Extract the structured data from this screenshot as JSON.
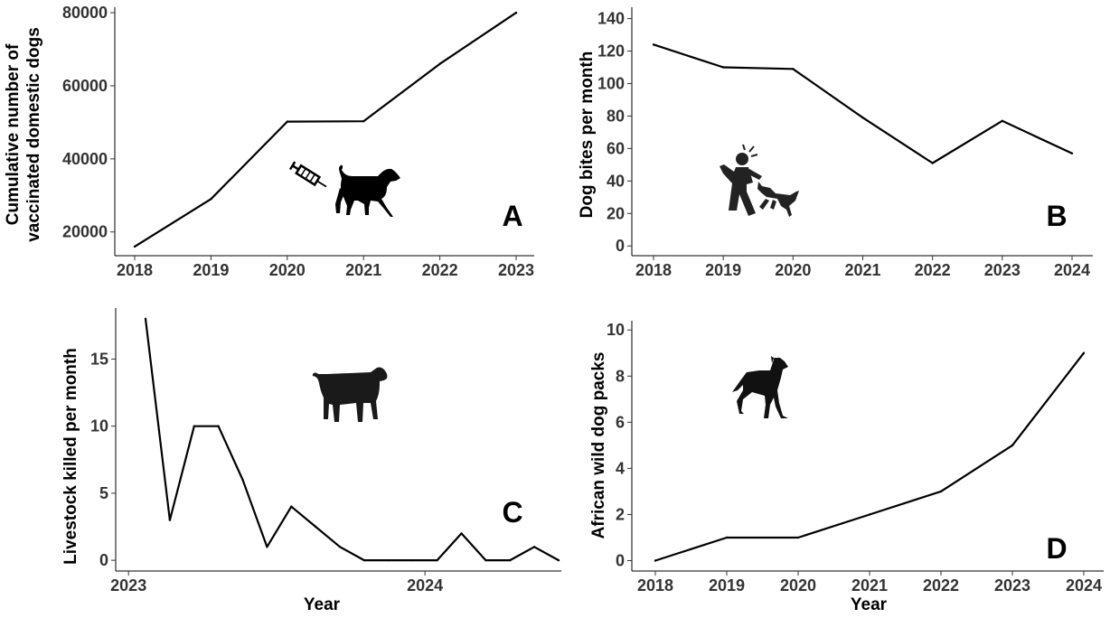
{
  "chart_data": [
    {
      "panel_label": "A",
      "type": "line",
      "x": [
        2018,
        2019,
        2020,
        2021,
        2022,
        2023
      ],
      "xticks": [
        "2018",
        "2019",
        "2020",
        "2021",
        "2022",
        "2023"
      ],
      "series": [
        {
          "values": [
            16000,
            29000,
            50200,
            50300,
            66000,
            80000
          ]
        }
      ],
      "ylabel_lines": [
        "Cumulative number of",
        "vaccinated domestic dogs"
      ],
      "xlabel": "",
      "ylim": [
        13500,
        81500
      ],
      "yticks": [
        20000,
        40000,
        60000,
        80000
      ],
      "ytick_labels": [
        "20000",
        "40000",
        "60000",
        "80000"
      ],
      "icons": [
        "syringe-icon",
        "domestic-dog-icon"
      ]
    },
    {
      "panel_label": "B",
      "type": "line",
      "x": [
        2018,
        2019,
        2020,
        2021,
        2022,
        2023,
        2024
      ],
      "xticks": [
        "2018",
        "2019",
        "2020",
        "2021",
        "2022",
        "2023",
        "2024"
      ],
      "series": [
        {
          "values": [
            124,
            110,
            109,
            79,
            51,
            77,
            57
          ]
        }
      ],
      "ylabel_lines": [
        "Dog bites per month"
      ],
      "xlabel": "",
      "ylim": [
        -6,
        147
      ],
      "yticks": [
        0,
        20,
        40,
        60,
        80,
        100,
        120,
        140
      ],
      "ytick_labels": [
        "0",
        "20",
        "40",
        "60",
        "80",
        "100",
        "120",
        "140"
      ],
      "icons": [
        "dog-bite-person-icon"
      ]
    },
    {
      "panel_label": "C",
      "type": "line",
      "x": [
        0,
        1,
        2,
        3,
        4,
        5,
        6,
        7,
        8,
        9,
        10,
        11,
        12,
        13,
        14,
        15,
        16,
        17
      ],
      "xticks": [
        "2023",
        "2024"
      ],
      "xtick_positions": [
        -0.7,
        11.5
      ],
      "series": [
        {
          "values": [
            18,
            3,
            10,
            10,
            6,
            1,
            4,
            2.5,
            1,
            0,
            0,
            0,
            0,
            2,
            0,
            0,
            1,
            0
          ]
        }
      ],
      "ylabel_lines": [
        "Livestock killed per month"
      ],
      "xlabel": "Year",
      "ylim": [
        -0.8,
        18.8
      ],
      "yticks": [
        0,
        5,
        10,
        15
      ],
      "ytick_labels": [
        "0",
        "5",
        "10",
        "15"
      ],
      "icons": [
        "livestock-goat-icon"
      ]
    },
    {
      "panel_label": "D",
      "type": "line",
      "x": [
        2018,
        2019,
        2020,
        2021,
        2022,
        2023,
        2024
      ],
      "xticks": [
        "2018",
        "2019",
        "2020",
        "2021",
        "2022",
        "2023",
        "2024"
      ],
      "series": [
        {
          "values": [
            0,
            1,
            1,
            2,
            3,
            5,
            9
          ]
        }
      ],
      "ylabel_lines": [
        "African wild dog packs"
      ],
      "xlabel": "Year",
      "ylim": [
        -0.45,
        10.4
      ],
      "yticks": [
        0,
        2,
        4,
        6,
        8,
        10
      ],
      "ytick_labels": [
        "0",
        "2",
        "4",
        "6",
        "8",
        "10"
      ],
      "icons": [
        "african-wild-dog-icon"
      ]
    }
  ]
}
